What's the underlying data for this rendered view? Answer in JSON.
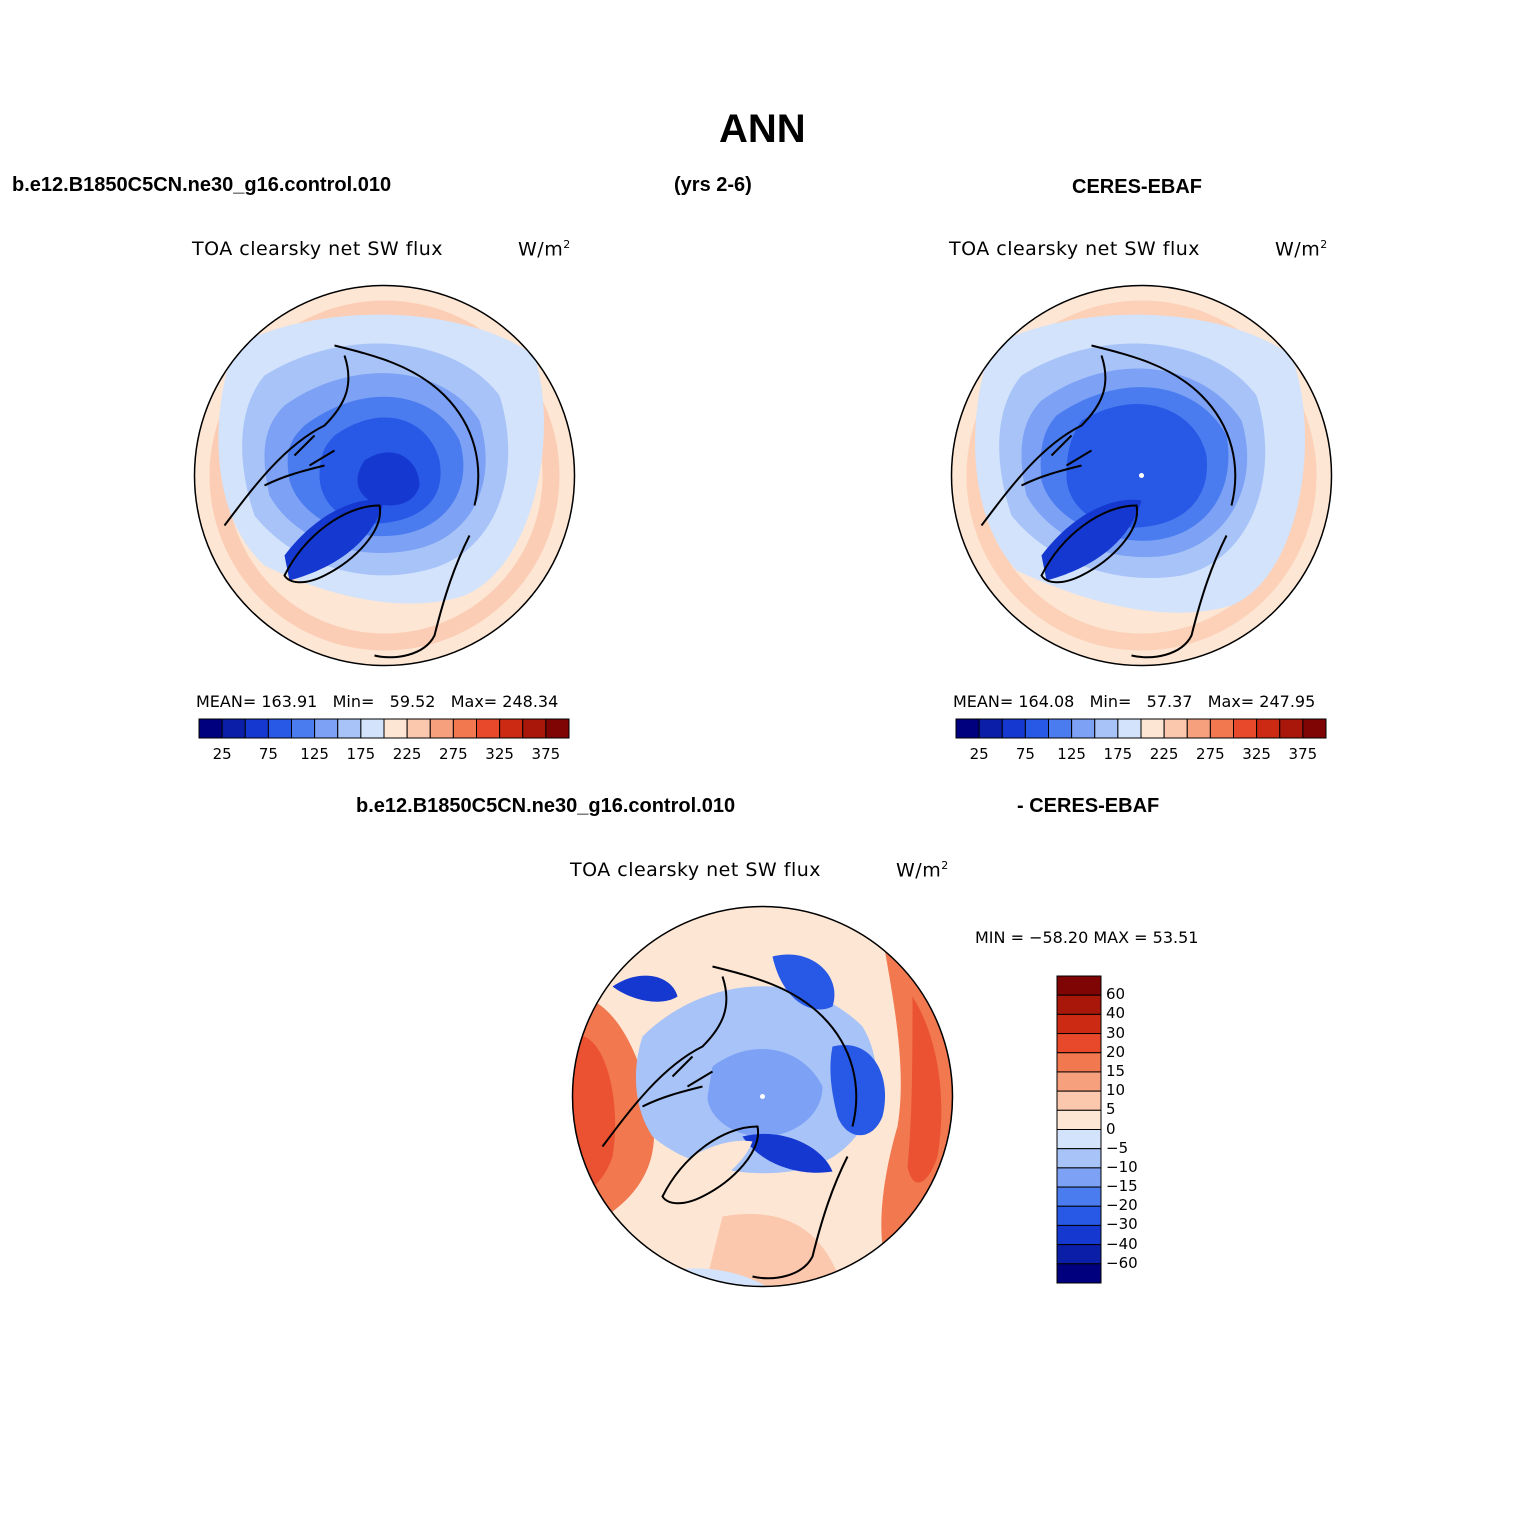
{
  "title": "ANN",
  "top_left_header": "b.e12.B1850C5CN.ne30_g16.control.010",
  "top_center_header": "(yrs 2-6)",
  "top_right_header": "CERES-EBAF",
  "bottom_header_left": "b.e12.B1850C5CN.ne30_g16.control.010",
  "bottom_header_right": "- CERES-EBAF",
  "panels": {
    "model": {
      "title": "TOA clearsky net SW flux",
      "units_base": "W/m",
      "units_exp": "2",
      "mean_label": "MEAN=",
      "mean_value": "163.91",
      "min_label": "Min=",
      "min_value": "59.52",
      "max_label": "Max=",
      "max_value": "248.34"
    },
    "obs": {
      "title": "TOA clearsky net SW flux",
      "units_base": "W/m",
      "units_exp": "2",
      "mean_label": "MEAN=",
      "mean_value": "164.08",
      "min_label": "Min=",
      "min_value": "57.37",
      "max_label": "Max=",
      "max_value": "247.95"
    },
    "diff": {
      "title": "TOA clearsky net SW flux",
      "units_base": "W/m",
      "units_exp": "2",
      "minmax_text": "MIN = −58.20 MAX =  53.51"
    }
  },
  "colorbar_abs": {
    "colors": [
      "#00007f",
      "#0a1ea8",
      "#1438d0",
      "#2859e6",
      "#4a7cf0",
      "#7ca1f5",
      "#a7c3f8",
      "#d2e3fb",
      "#fde6d4",
      "#fbc7ad",
      "#f7a07e",
      "#f2784f",
      "#e8492a",
      "#cc2a12",
      "#a8170a",
      "#7f0505"
    ],
    "tick_labels": [
      "25",
      "75",
      "125",
      "175",
      "225",
      "275",
      "325",
      "375"
    ]
  },
  "colorbar_diff": {
    "colors": [
      "#7f0505",
      "#a8170a",
      "#cc2a12",
      "#e8492a",
      "#f2784f",
      "#f7a07e",
      "#fbc7ad",
      "#fde6d4",
      "#d2e3fb",
      "#a7c3f8",
      "#7ca1f5",
      "#4a7cf0",
      "#2859e6",
      "#1438d0",
      "#0a1ea8",
      "#00007f"
    ],
    "tick_labels": [
      "60",
      "40",
      "30",
      "20",
      "15",
      "10",
      "5",
      "0",
      "−5",
      "−10",
      "−15",
      "−20",
      "−30",
      "−40",
      "−60"
    ]
  }
}
